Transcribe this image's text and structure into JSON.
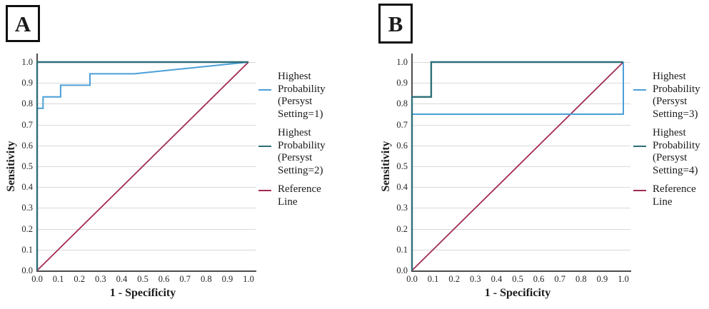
{
  "figure": {
    "colors": {
      "blue": "#4b9fd8",
      "teal": "#2e6e79",
      "crimson": "#a12a55",
      "grid": "#d9d9d9",
      "axis": "#4d4d4d"
    }
  },
  "chart_data": [
    {
      "type": "line",
      "panel_label": "A",
      "title": "",
      "xlabel": "1 - Specificity",
      "ylabel": "Sensitivity",
      "xlim": [
        0,
        1
      ],
      "ylim": [
        0,
        1
      ],
      "x_ticks": [
        "0.0",
        "0.1",
        "0.2",
        "0.3",
        "0.4",
        "0.5",
        "0.6",
        "0.7",
        "0.8",
        "0.9",
        "1.0"
      ],
      "y_ticks": [
        "0.0",
        "0.1",
        "0.2",
        "0.3",
        "0.4",
        "0.5",
        "0.6",
        "0.7",
        "0.8",
        "0.9",
        "1.0"
      ],
      "grid": "horizontal",
      "legend_position": "right",
      "series": [
        {
          "name": "Highest Probability (Persyst Setting=1)",
          "legend_lines": [
            "Highest",
            "Probability",
            "(Persyst",
            "Setting=1)"
          ],
          "color": "#4b9fd8",
          "stroke_width": 2,
          "z": 1,
          "points": [
            [
              0,
              0
            ],
            [
              0,
              0.778
            ],
            [
              0.028,
              0.778
            ],
            [
              0.028,
              0.833
            ],
            [
              0.111,
              0.833
            ],
            [
              0.111,
              0.889
            ],
            [
              0.25,
              0.889
            ],
            [
              0.25,
              0.944
            ],
            [
              0.46,
              0.944
            ],
            [
              1,
              1
            ]
          ]
        },
        {
          "name": "Highest Probability (Persyst Setting=2)",
          "legend_lines": [
            "Highest",
            "Probability",
            "(Persyst",
            "Setting=2)"
          ],
          "color": "#2e6e79",
          "stroke_width": 2.4,
          "z": 2,
          "points": [
            [
              0,
              0
            ],
            [
              0,
              1
            ],
            [
              1,
              1
            ]
          ]
        },
        {
          "name": "Reference Line",
          "legend_lines": [
            "Reference",
            "Line"
          ],
          "color": "#a12a55",
          "stroke_width": 1.8,
          "z": 0,
          "points": [
            [
              0,
              0
            ],
            [
              1,
              1
            ]
          ]
        }
      ]
    },
    {
      "type": "line",
      "panel_label": "B",
      "title": "",
      "xlabel": "1 - Specificity",
      "ylabel": "Sensitivity",
      "xlim": [
        0,
        1
      ],
      "ylim": [
        0,
        1
      ],
      "x_ticks": [
        "0.0",
        "0.1",
        "0.2",
        "0.3",
        "0.4",
        "0.5",
        "0.6",
        "0.7",
        "0.8",
        "0.9",
        "1.0"
      ],
      "y_ticks": [
        "0.0",
        "0.1",
        "0.2",
        "0.3",
        "0.4",
        "0.5",
        "0.6",
        "0.7",
        "0.8",
        "0.9",
        "1.0"
      ],
      "grid": "horizontal",
      "legend_position": "right",
      "series": [
        {
          "name": "Highest Probability (Persyst Setting=3)",
          "legend_lines": [
            "Highest",
            "Probability",
            "(Persyst",
            "Setting=3)"
          ],
          "color": "#4b9fd8",
          "stroke_width": 2,
          "z": 1,
          "points": [
            [
              0,
              0
            ],
            [
              0,
              0.75
            ],
            [
              1,
              0.75
            ],
            [
              1,
              1
            ]
          ]
        },
        {
          "name": "Highest Probability (Persyst Setting=4)",
          "legend_lines": [
            "Highest",
            "Probability",
            "(Persyst",
            "Setting=4)"
          ],
          "color": "#2e6e79",
          "stroke_width": 2.4,
          "z": 2,
          "points": [
            [
              0,
              0
            ],
            [
              0,
              0.833
            ],
            [
              0.091,
              0.833
            ],
            [
              0.091,
              1
            ],
            [
              1,
              1
            ]
          ]
        },
        {
          "name": "Reference Line",
          "legend_lines": [
            "Reference",
            "Line"
          ],
          "color": "#a12a55",
          "stroke_width": 1.8,
          "z": 0,
          "points": [
            [
              0,
              0
            ],
            [
              1,
              1
            ]
          ]
        }
      ]
    }
  ]
}
